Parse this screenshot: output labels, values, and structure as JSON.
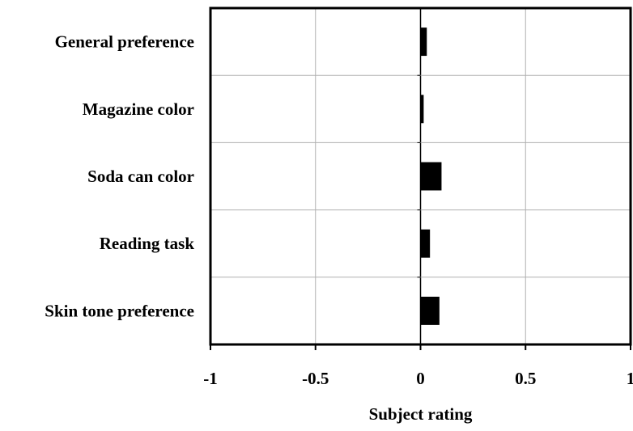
{
  "chart_data": {
    "type": "bar",
    "orientation": "horizontal",
    "categories": [
      "General preference",
      "Magazine color",
      "Soda can color",
      "Reading task",
      "Skin tone preference"
    ],
    "values": [
      0.03,
      0.015,
      0.1,
      0.045,
      0.09
    ],
    "xlabel": "Subject rating",
    "ylabel": "",
    "xlim": [
      -1,
      1
    ],
    "xticks": [
      -1,
      -0.5,
      0,
      0.5,
      1
    ],
    "xtick_labels": [
      "-1",
      "-0.5",
      "0",
      "0.5",
      "1"
    ],
    "grid": true,
    "legend": "none",
    "colors": {
      "bar": "#000000",
      "grid": "#b0b0b0",
      "frame": "#000000",
      "background": "#ffffff"
    }
  }
}
